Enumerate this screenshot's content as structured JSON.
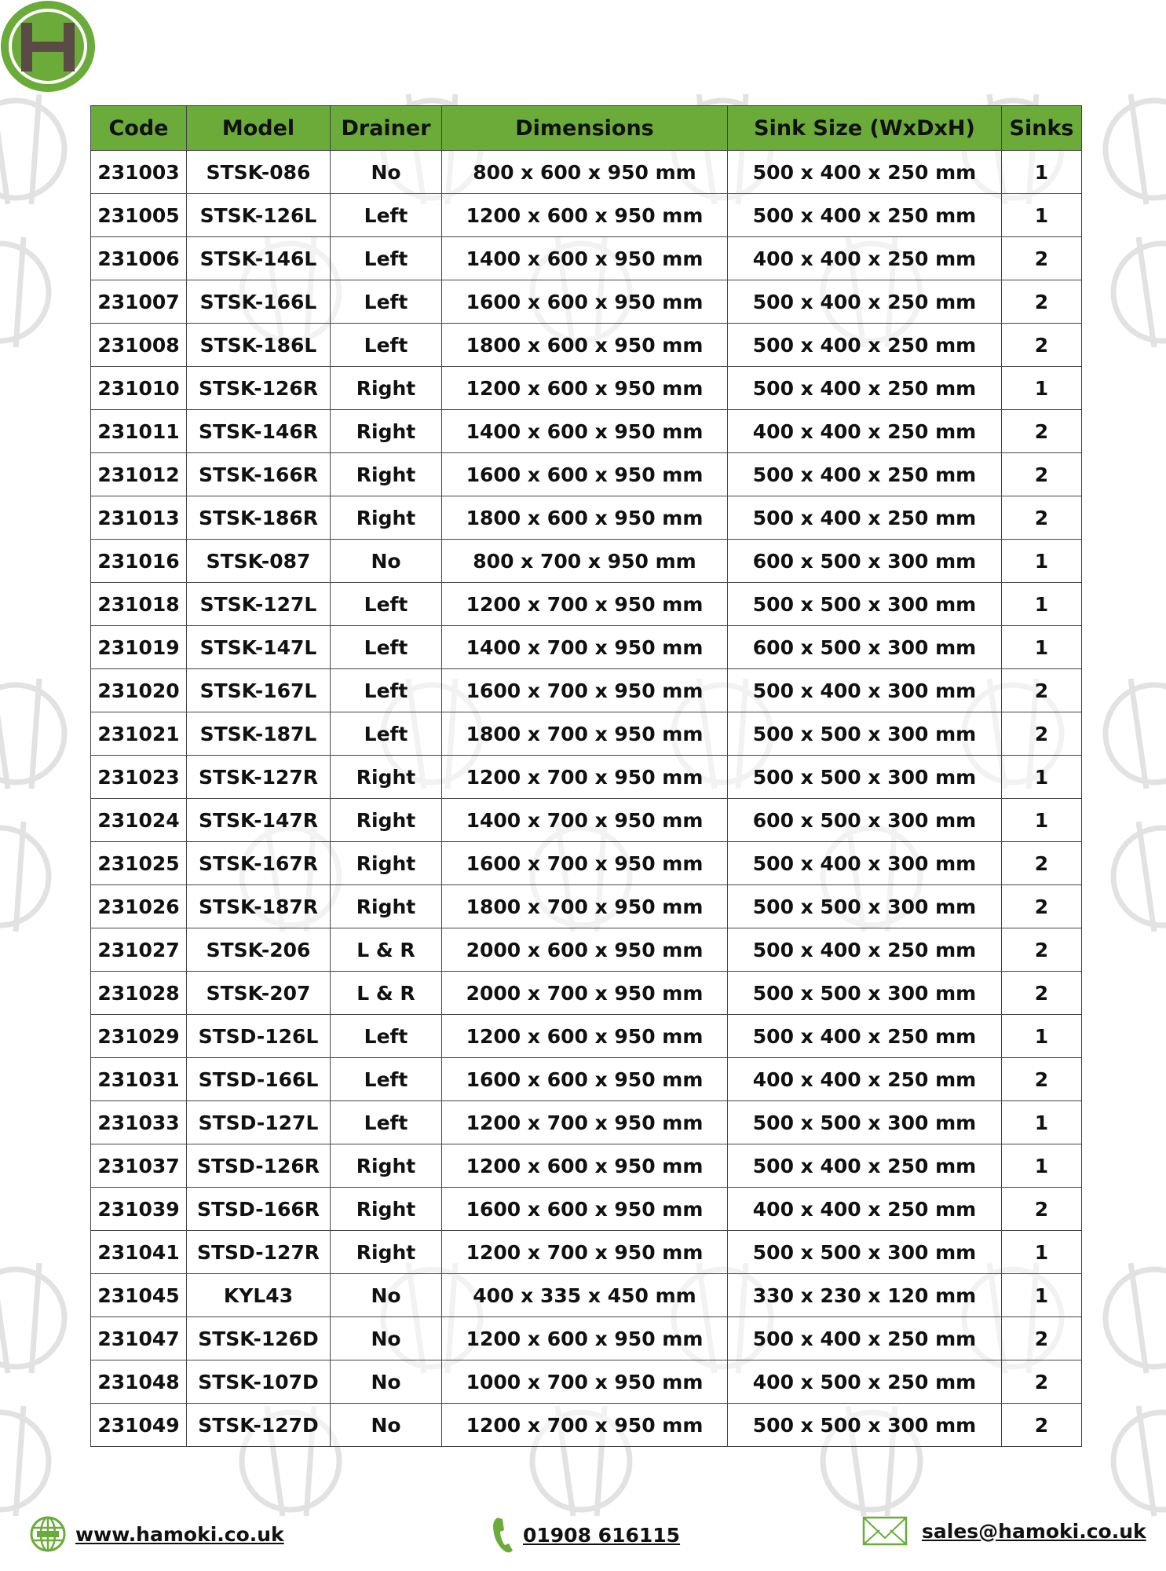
{
  "brand": {
    "logo_letter": "H",
    "accent": "#6aab3a",
    "logo_letter_color": "#5b4a45"
  },
  "table": {
    "headers": [
      "Code",
      "Model",
      "Drainer",
      "Dimensions",
      "Sink Size (WxDxH)",
      "Sinks"
    ],
    "rows": [
      [
        "231003",
        "STSK-086",
        "No",
        "800 x 600 x 950 mm",
        "500 x 400 x 250 mm",
        "1"
      ],
      [
        "231005",
        "STSK-126L",
        "Left",
        "1200 x 600 x 950 mm",
        "500 x 400 x 250 mm",
        "1"
      ],
      [
        "231006",
        "STSK-146L",
        "Left",
        "1400 x 600 x 950 mm",
        "400 x 400 x 250 mm",
        "2"
      ],
      [
        "231007",
        "STSK-166L",
        "Left",
        "1600 x 600 x 950 mm",
        "500 x 400 x 250 mm",
        "2"
      ],
      [
        "231008",
        "STSK-186L",
        "Left",
        "1800 x 600 x 950 mm",
        "500 x 400 x 250 mm",
        "2"
      ],
      [
        "231010",
        "STSK-126R",
        "Right",
        "1200 x 600 x 950 mm",
        "500 x 400 x 250 mm",
        "1"
      ],
      [
        "231011",
        "STSK-146R",
        "Right",
        "1400 x 600 x 950 mm",
        "400 x 400 x 250 mm",
        "2"
      ],
      [
        "231012",
        "STSK-166R",
        "Right",
        "1600 x 600 x 950 mm",
        "500 x 400 x 250 mm",
        "2"
      ],
      [
        "231013",
        "STSK-186R",
        "Right",
        "1800 x 600 x 950 mm",
        "500 x 400 x 250 mm",
        "2"
      ],
      [
        "231016",
        "STSK-087",
        "No",
        "800 x 700 x 950 mm",
        "600 x 500 x 300 mm",
        "1"
      ],
      [
        "231018",
        "STSK-127L",
        "Left",
        "1200 x 700 x 950 mm",
        "500 x 500 x 300 mm",
        "1"
      ],
      [
        "231019",
        "STSK-147L",
        "Left",
        "1400 x 700 x 950 mm",
        "600 x 500 x 300 mm",
        "1"
      ],
      [
        "231020",
        "STSK-167L",
        "Left",
        "1600 x 700 x 950 mm",
        "500 x 400 x 300 mm",
        "2"
      ],
      [
        "231021",
        "STSK-187L",
        "Left",
        "1800 x 700 x 950 mm",
        "500 x 500 x 300 mm",
        "2"
      ],
      [
        "231023",
        "STSK-127R",
        "Right",
        "1200 x 700 x 950 mm",
        "500 x 500 x 300 mm",
        "1"
      ],
      [
        "231024",
        "STSK-147R",
        "Right",
        "1400 x 700 x 950 mm",
        "600 x 500 x 300 mm",
        "1"
      ],
      [
        "231025",
        "STSK-167R",
        "Right",
        "1600 x 700 x 950 mm",
        "500 x 400 x 300 mm",
        "2"
      ],
      [
        "231026",
        "STSK-187R",
        "Right",
        "1800 x 700 x 950 mm",
        "500 x 500 x 300 mm",
        "2"
      ],
      [
        "231027",
        "STSK-206",
        "L & R",
        "2000 x 600 x 950 mm",
        "500 x 400 x 250 mm",
        "2"
      ],
      [
        "231028",
        "STSK-207",
        "L & R",
        "2000 x 700 x 950 mm",
        "500 x 500 x 300 mm",
        "2"
      ],
      [
        "231029",
        "STSD-126L",
        "Left",
        "1200 x 600 x 950 mm",
        "500 x 400 x 250 mm",
        "1"
      ],
      [
        "231031",
        "STSD-166L",
        "Left",
        "1600 x 600 x 950 mm",
        "400 x 400 x 250 mm",
        "2"
      ],
      [
        "231033",
        "STSD-127L",
        "Left",
        "1200 x 700 x 950 mm",
        "500 x 500 x 300 mm",
        "1"
      ],
      [
        "231037",
        "STSD-126R",
        "Right",
        "1200 x 600 x 950 mm",
        "500 x 400 x 250 mm",
        "1"
      ],
      [
        "231039",
        "STSD-166R",
        "Right",
        "1600 x 600 x 950 mm",
        "400 x 400 x 250 mm",
        "2"
      ],
      [
        "231041",
        "STSD-127R",
        "Right",
        "1200 x 700 x 950 mm",
        "500 x 500 x 300 mm",
        "1"
      ],
      [
        "231045",
        "KYL43",
        "No",
        "400 x 335 x 450 mm",
        "330 x 230 x 120 mm",
        "1"
      ],
      [
        "231047",
        "STSK-126D",
        "No",
        "1200 x 600 x 950 mm",
        "500 x 400 x 250 mm",
        "2"
      ],
      [
        "231048",
        "STSK-107D",
        "No",
        "1000 x 700 x 950 mm",
        "400 x 500 x 250 mm",
        "2"
      ],
      [
        "231049",
        "STSK-127D",
        "No",
        "1200 x 700 x 950 mm",
        "500 x 500 x 300 mm",
        "2"
      ]
    ]
  },
  "footer": {
    "website": "www.hamoki.co.uk",
    "website_icon": "globe-icon",
    "phone": "01908 616115",
    "phone_icon": "phone-icon",
    "email": "sales@hamoki.co.uk",
    "email_icon": "envelope-icon"
  }
}
